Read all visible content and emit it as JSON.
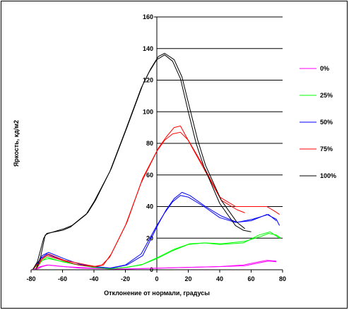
{
  "chart_data": {
    "type": "line",
    "xlabel": "Отклонение от нормали, градусы",
    "ylabel": "Яркость, кд/м2",
    "xlim": [
      -80,
      80
    ],
    "ylim": [
      0,
      160
    ],
    "x_ticks": [
      -80,
      -60,
      -40,
      -20,
      0,
      20,
      40,
      60,
      80
    ],
    "y_ticks": [
      0,
      20,
      40,
      60,
      80,
      100,
      120,
      140,
      160
    ],
    "grid": "horizontal",
    "legend_position": "right",
    "series": [
      {
        "name": "0%",
        "color": "#ff00ff",
        "lines": [
          [
            [
              -79,
              0
            ],
            [
              -74,
              2
            ],
            [
              -70,
              3
            ],
            [
              -60,
              2
            ],
            [
              -50,
              1.5
            ],
            [
              -40,
              1
            ],
            [
              -30,
              0.5
            ],
            [
              -20,
              0.5
            ],
            [
              0,
              1
            ],
            [
              20,
              1.5
            ],
            [
              40,
              2
            ],
            [
              55,
              3
            ],
            [
              65,
              5
            ],
            [
              70,
              6
            ],
            [
              76,
              5.5
            ]
          ],
          [
            [
              -77,
              0
            ],
            [
              -73,
              2
            ],
            [
              -69,
              3
            ],
            [
              -59,
              2
            ],
            [
              -49,
              1
            ],
            [
              -39,
              0.8
            ],
            [
              -29,
              0.5
            ],
            [
              -19,
              0.5
            ],
            [
              1,
              1
            ],
            [
              21,
              1.5
            ],
            [
              41,
              2
            ],
            [
              56,
              2.5
            ],
            [
              66,
              4.5
            ],
            [
              71,
              5.5
            ],
            [
              76,
              5
            ]
          ]
        ]
      },
      {
        "name": "25%",
        "color": "#00ff00",
        "lines": [
          [
            [
              -79,
              0
            ],
            [
              -74,
              5
            ],
            [
              -70,
              8
            ],
            [
              -60,
              5
            ],
            [
              -50,
              3
            ],
            [
              -40,
              1.5
            ],
            [
              -30,
              0.5
            ],
            [
              -20,
              1.5
            ],
            [
              -10,
              3
            ],
            [
              0,
              7
            ],
            [
              10,
              12
            ],
            [
              20,
              16
            ],
            [
              30,
              17
            ],
            [
              40,
              16
            ],
            [
              55,
              17
            ],
            [
              65,
              22
            ],
            [
              72,
              24
            ],
            [
              78,
              20
            ]
          ],
          [
            [
              -77,
              0
            ],
            [
              -73,
              6
            ],
            [
              -69,
              7
            ],
            [
              -59,
              5
            ],
            [
              -49,
              3
            ],
            [
              -39,
              1.5
            ],
            [
              -29,
              0.8
            ],
            [
              -19,
              1.5
            ],
            [
              -9,
              3.5
            ],
            [
              1,
              8
            ],
            [
              11,
              13
            ],
            [
              21,
              16.5
            ],
            [
              31,
              17
            ],
            [
              41,
              16.5
            ],
            [
              56,
              18
            ],
            [
              66,
              21
            ],
            [
              71,
              23
            ],
            [
              76,
              22
            ],
            [
              79,
              20
            ]
          ]
        ]
      },
      {
        "name": "50%",
        "color": "#0000ff",
        "lines": [
          [
            [
              -79,
              0
            ],
            [
              -74,
              7
            ],
            [
              -70,
              10
            ],
            [
              -60,
              6
            ],
            [
              -50,
              3
            ],
            [
              -40,
              2
            ],
            [
              -30,
              1
            ],
            [
              -20,
              3
            ],
            [
              -10,
              10
            ],
            [
              0,
              28
            ],
            [
              5,
              36
            ],
            [
              10,
              43
            ],
            [
              15,
              47
            ],
            [
              20,
              46
            ],
            [
              30,
              40
            ],
            [
              40,
              33
            ],
            [
              50,
              30
            ],
            [
              60,
              31
            ],
            [
              70,
              35
            ],
            [
              76,
              32
            ],
            [
              78,
              28
            ]
          ],
          [
            [
              -77,
              0
            ],
            [
              -73,
              9
            ],
            [
              -69,
              11
            ],
            [
              -59,
              7
            ],
            [
              -49,
              3.5
            ],
            [
              -39,
              2
            ],
            [
              -29,
              1
            ],
            [
              -19,
              3
            ],
            [
              -9,
              9
            ],
            [
              1,
              29
            ],
            [
              6,
              38
            ],
            [
              11,
              45
            ],
            [
              16,
              49
            ],
            [
              21,
              47
            ],
            [
              31,
              40
            ],
            [
              41,
              34
            ],
            [
              51,
              30
            ],
            [
              61,
              32
            ],
            [
              71,
              35
            ],
            [
              76,
              31
            ]
          ]
        ]
      },
      {
        "name": "75%",
        "color": "#ff0000",
        "lines": [
          [
            [
              -79,
              0
            ],
            [
              -74,
              6
            ],
            [
              -70,
              9
            ],
            [
              -60,
              6
            ],
            [
              -50,
              3
            ],
            [
              -40,
              2
            ],
            [
              -35,
              3
            ],
            [
              -30,
              8
            ],
            [
              -20,
              28
            ],
            [
              -10,
              55
            ],
            [
              0,
              75
            ],
            [
              5,
              82
            ],
            [
              10,
              86
            ],
            [
              15,
              87
            ],
            [
              20,
              82
            ],
            [
              30,
              65
            ],
            [
              40,
              46
            ],
            [
              50,
              40
            ],
            [
              60,
              40
            ],
            [
              70,
              40
            ],
            [
              75,
              37
            ],
            [
              78,
              35
            ]
          ],
          [
            [
              -77,
              0
            ],
            [
              -73,
              7
            ],
            [
              -69,
              10
            ],
            [
              -59,
              6
            ],
            [
              -49,
              4
            ],
            [
              -39,
              2
            ],
            [
              -34,
              3
            ],
            [
              -29,
              10
            ],
            [
              -19,
              30
            ],
            [
              -9,
              58
            ],
            [
              1,
              77
            ],
            [
              6,
              84
            ],
            [
              11,
              90
            ],
            [
              15,
              91
            ],
            [
              21,
              80
            ],
            [
              31,
              62
            ],
            [
              41,
              44
            ],
            [
              51,
              38
            ],
            [
              56,
              36
            ]
          ]
        ]
      },
      {
        "name": "100%",
        "color": "#000000",
        "lines": [
          [
            [
              -79,
              0
            ],
            [
              -76,
              5
            ],
            [
              -72,
              20
            ],
            [
              -70,
              23
            ],
            [
              -60,
              25
            ],
            [
              -55,
              27
            ],
            [
              -45,
              35
            ],
            [
              -40,
              43
            ],
            [
              -30,
              62
            ],
            [
              -20,
              88
            ],
            [
              -10,
              115
            ],
            [
              -5,
              125
            ],
            [
              0,
              133
            ],
            [
              5,
              136
            ],
            [
              10,
              132
            ],
            [
              15,
              121
            ],
            [
              20,
              100
            ],
            [
              25,
              80
            ],
            [
              30,
              65
            ],
            [
              40,
              42
            ],
            [
              50,
              28
            ],
            [
              55,
              25
            ],
            [
              60,
              24
            ]
          ],
          [
            [
              -77,
              0
            ],
            [
              -74,
              8
            ],
            [
              -71,
              22
            ],
            [
              -69,
              23
            ],
            [
              -59,
              26
            ],
            [
              -54,
              28
            ],
            [
              -44,
              36
            ],
            [
              -39,
              44
            ],
            [
              -29,
              64
            ],
            [
              -19,
              90
            ],
            [
              -9,
              117
            ],
            [
              -4,
              127
            ],
            [
              1,
              135
            ],
            [
              5,
              137
            ],
            [
              11,
              133
            ],
            [
              16,
              122
            ],
            [
              21,
              102
            ],
            [
              26,
              82
            ],
            [
              31,
              66
            ],
            [
              41,
              44
            ],
            [
              51,
              30
            ],
            [
              56,
              26
            ]
          ]
        ]
      }
    ]
  }
}
